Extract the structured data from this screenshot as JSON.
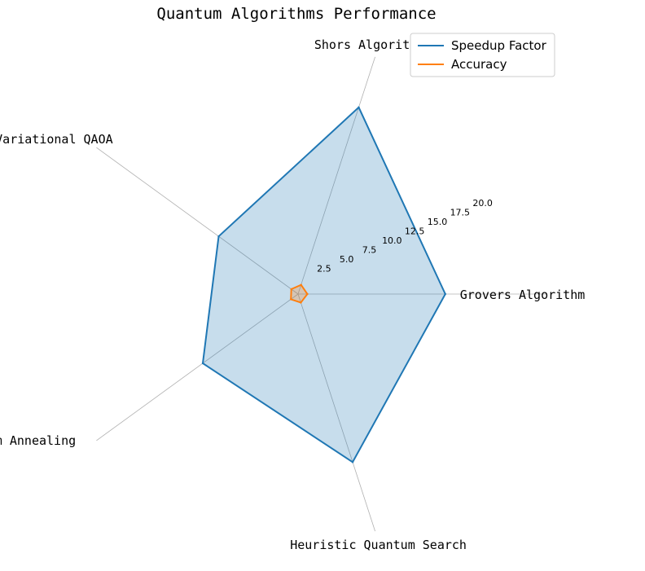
{
  "chart_data": {
    "type": "radar",
    "title": "Quantum Algorithms Performance",
    "categories": [
      "Grovers Algorithm",
      "Shors Algorithm",
      "Variational QAOA",
      "Quantum Annealing",
      "Heuristic Quantum Search"
    ],
    "rlim": [
      0,
      20
    ],
    "rticks": [
      "2.5",
      "5.0",
      "7.5",
      "10.0",
      "12.5",
      "15.0",
      "17.5",
      "20.0"
    ],
    "legend_position": "top-right",
    "grid": "spokes only",
    "series": [
      {
        "name": "Speedup Factor",
        "values": [
          15,
          20,
          10,
          12,
          18
        ],
        "color": "#1f77b4",
        "fill": true
      },
      {
        "name": "Accuracy",
        "values": [
          0.95,
          0.99,
          0.85,
          0.9,
          0.92
        ],
        "color": "#ff7f0e",
        "fill": true
      }
    ]
  }
}
